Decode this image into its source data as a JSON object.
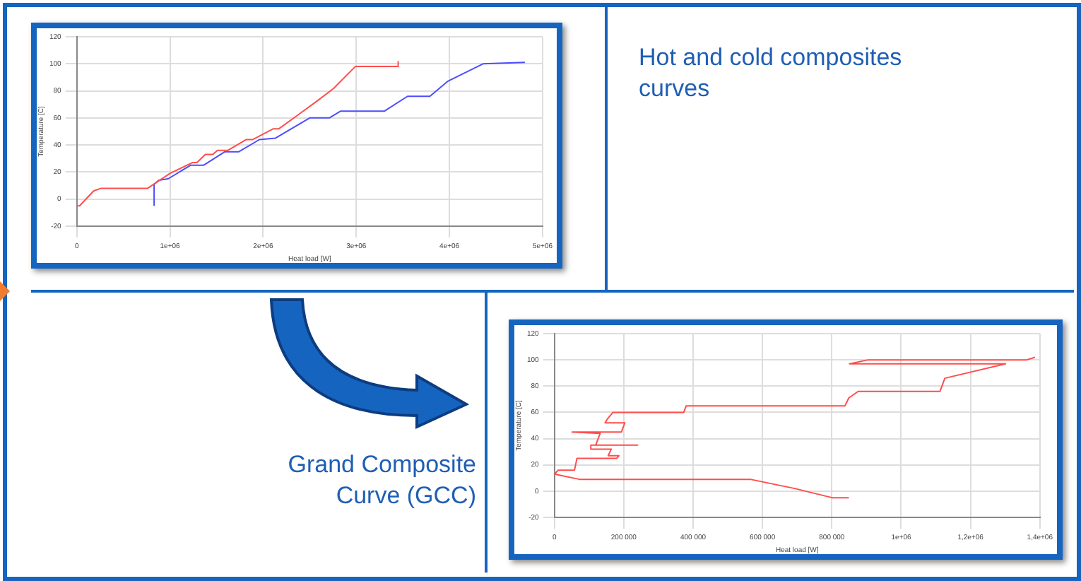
{
  "chart_data": [
    {
      "type": "line",
      "xlabel": "Heat load [W]",
      "ylabel": "Temperature [C]",
      "xlim": [
        0,
        5000000
      ],
      "ylim": [
        -20,
        120
      ],
      "xticks": [
        0,
        {
          "value": 1000000,
          "label": "1e+06"
        },
        {
          "value": 2000000,
          "label": "2e+06"
        },
        {
          "value": 3000000,
          "label": "3e+06"
        },
        {
          "value": 4000000,
          "label": "4e+06"
        },
        {
          "value": 5000000,
          "label": "5e+06"
        }
      ],
      "yticks": [
        -20,
        0,
        20,
        40,
        60,
        80,
        100,
        120
      ],
      "grid": true,
      "marker": "none",
      "series": [
        {
          "color": "#ff4d4d",
          "x": [
            0,
            30000,
            180000,
            260000,
            760000,
            1000000,
            1240000,
            1290000,
            1380000,
            1460000,
            1510000,
            1620000,
            1820000,
            1890000,
            2110000,
            2170000,
            2370000,
            2570000,
            2760000,
            2990000,
            3450000,
            3450000
          ],
          "values": [
            -5,
            -5,
            6,
            8,
            8,
            19,
            27,
            27,
            33,
            33,
            36,
            36,
            44,
            44,
            52,
            52,
            62,
            72,
            82,
            98,
            98,
            102
          ]
        },
        {
          "color": "#4d4dff",
          "x": [
            830000,
            830000,
            880000,
            980000,
            1220000,
            1360000,
            1590000,
            1740000,
            1960000,
            2130000,
            2500000,
            2710000,
            2830000,
            3300000,
            3550000,
            3790000,
            3980000,
            4360000,
            4810000
          ],
          "values": [
            -5,
            11,
            14,
            15,
            25,
            25,
            35,
            35,
            44,
            45,
            60,
            60,
            65,
            65,
            76,
            76,
            87,
            100,
            101
          ]
        }
      ]
    },
    {
      "type": "other",
      "title": "Hot and cold composites curves"
    },
    {
      "type": "other",
      "title": "Grand Composite Curve (GCC)"
    },
    {
      "type": "line",
      "xlabel": "Heat load [W]",
      "ylabel": "Temperature [C]",
      "xlim": [
        0,
        1400000
      ],
      "ylim": [
        -20,
        120
      ],
      "xticks": [
        0,
        {
          "value": 200000,
          "label": "200 000"
        },
        {
          "value": 400000,
          "label": "400 000"
        },
        {
          "value": 600000,
          "label": "600 000"
        },
        {
          "value": 800000,
          "label": "800 000"
        },
        {
          "value": 1000000,
          "label": "1e+06"
        },
        {
          "value": 1200000,
          "label": "1,2e+06"
        },
        {
          "value": 1400000,
          "label": "1,4e+06"
        }
      ],
      "yticks": [
        -20,
        0,
        20,
        40,
        60,
        80,
        100,
        120
      ],
      "grid": true,
      "marker": "none",
      "series": [
        {
          "color": "#ff4d4d",
          "x": [
            849000,
            801000,
            693000,
            565000,
            72000,
            0,
            11000,
            58000,
            65000,
            180000,
            186000,
            155000,
            164000,
            105000,
            105000,
            240000,
            119000,
            132000,
            51000,
            193000,
            203000,
            146000,
            153000,
            169000,
            373000,
            380000,
            838000,
            849000,
            876000,
            1112000,
            1126000,
            1301000,
            851000,
            905000,
            1362000,
            1386000
          ],
          "values": [
            -5,
            -5,
            2,
            9,
            9,
            13,
            16,
            16,
            25,
            25,
            27,
            27,
            32,
            32,
            35,
            35,
            35,
            44,
            45,
            45,
            52,
            52,
            55,
            60,
            60,
            65,
            65,
            71,
            76,
            76,
            86,
            97,
            97,
            100,
            100,
            102
          ]
        }
      ]
    }
  ]
}
